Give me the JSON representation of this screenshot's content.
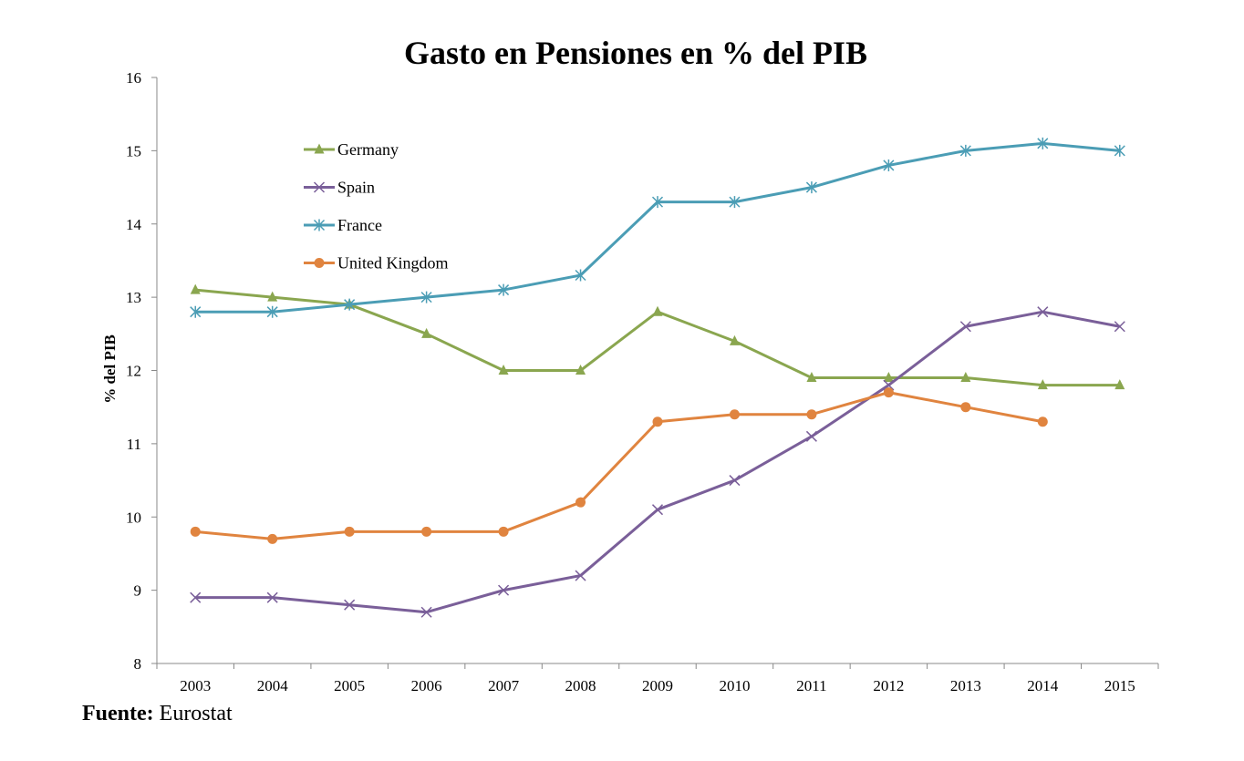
{
  "chart_data": {
    "type": "line",
    "title": "Gasto en Pensiones en % del PIB",
    "xlabel": "",
    "ylabel": "% del PIB",
    "ylim": [
      8,
      16
    ],
    "yticks": [
      "8",
      "9",
      "10",
      "11",
      "12",
      "13",
      "14",
      "15",
      "16"
    ],
    "categories": [
      "2003",
      "2004",
      "2005",
      "2006",
      "2007",
      "2008",
      "2009",
      "2010",
      "2011",
      "2012",
      "2013",
      "2014",
      "2015"
    ],
    "grid": false,
    "legend_position": "top-left (inside plot)",
    "series": [
      {
        "name": "Germany",
        "color": "#8AA64F",
        "marker": "triangle",
        "values": [
          13.1,
          13.0,
          12.9,
          12.5,
          12.0,
          12.0,
          12.8,
          12.4,
          11.9,
          11.9,
          11.9,
          11.8,
          11.8
        ]
      },
      {
        "name": "Spain",
        "color": "#7A5F99",
        "marker": "x",
        "values": [
          8.9,
          8.9,
          8.8,
          8.7,
          9.0,
          9.2,
          10.1,
          10.5,
          11.1,
          11.8,
          12.6,
          12.8,
          12.6
        ]
      },
      {
        "name": "France",
        "color": "#4B9DB5",
        "marker": "asterisk",
        "values": [
          12.8,
          12.8,
          12.9,
          13.0,
          13.1,
          13.3,
          14.3,
          14.3,
          14.5,
          14.8,
          15.0,
          15.1,
          15.0
        ]
      },
      {
        "name": "United Kingdom",
        "color": "#E0843F",
        "marker": "circle",
        "values": [
          9.8,
          9.7,
          9.8,
          9.8,
          9.8,
          10.2,
          11.3,
          11.4,
          11.4,
          11.7,
          11.5,
          11.3,
          null
        ]
      }
    ]
  },
  "source": {
    "label": "Fuente:",
    "value": "Eurostat"
  }
}
